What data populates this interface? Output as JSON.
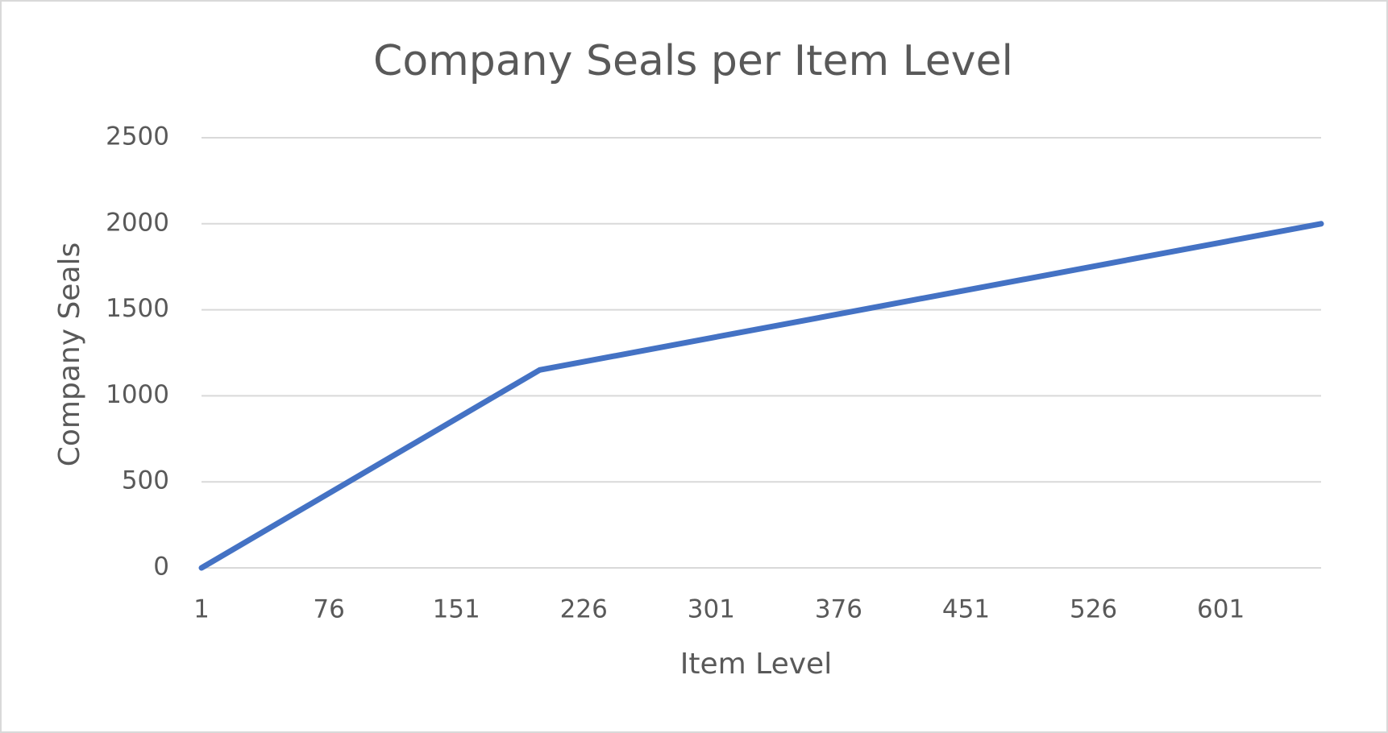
{
  "chart_data": {
    "type": "line",
    "title": "Company Seals per Item Level",
    "x_label": "Item Level",
    "y_label": "Company Seals",
    "x": [
      1,
      200,
      660
    ],
    "series": [
      {
        "name": "Company Seals",
        "color": "#4472c4",
        "values": [
          0,
          1150,
          2000
        ]
      }
    ],
    "xlim": [
      1,
      660
    ],
    "xticks": [
      1,
      76,
      151,
      226,
      301,
      376,
      451,
      526,
      601
    ],
    "ylim": [
      0,
      2500
    ],
    "yticks": [
      0,
      500,
      1000,
      1500,
      2000,
      2500
    ],
    "grid": true
  }
}
